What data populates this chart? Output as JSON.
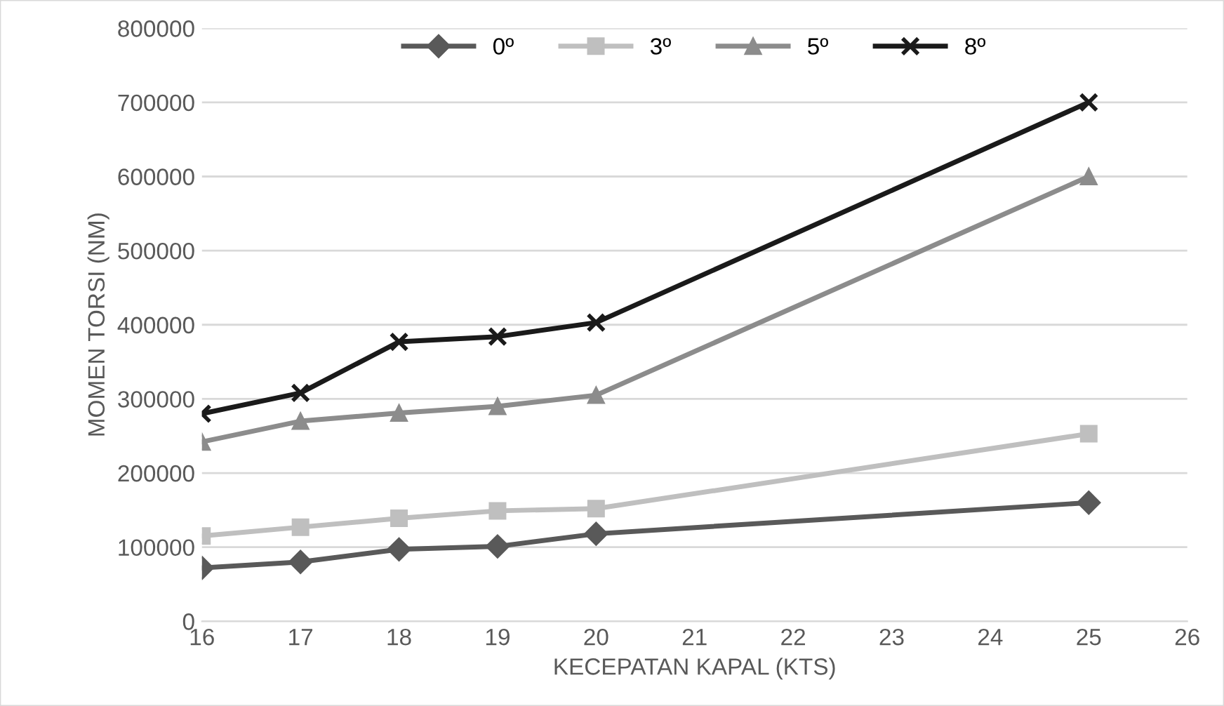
{
  "chart_data": {
    "type": "line",
    "xlabel": "KECEPATAN KAPAL (KTS)",
    "ylabel": "MOMEN TORSI (NM)",
    "x": [
      16,
      17,
      18,
      19,
      20,
      25
    ],
    "series": [
      {
        "name": "0º",
        "color": "#595959",
        "marker": "diamond",
        "values": [
          72000,
          80000,
          97000,
          101000,
          118000,
          160000
        ]
      },
      {
        "name": "3º",
        "color": "#bfbfbf",
        "marker": "square",
        "values": [
          115000,
          127000,
          139000,
          149000,
          152000,
          253000
        ]
      },
      {
        "name": "5º",
        "color": "#8c8c8c",
        "marker": "triangle",
        "values": [
          242000,
          270000,
          281000,
          290000,
          305000,
          600000
        ]
      },
      {
        "name": "8º",
        "color": "#1a1a1a",
        "marker": "cross",
        "values": [
          280000,
          308000,
          377000,
          384000,
          403000,
          700000
        ]
      }
    ],
    "xlim": [
      16,
      26
    ],
    "xticks": [
      16,
      17,
      18,
      19,
      20,
      21,
      22,
      23,
      24,
      25,
      26
    ],
    "ylim": [
      0,
      800000
    ],
    "yticks": [
      0,
      100000,
      200000,
      300000,
      400000,
      500000,
      600000,
      700000,
      800000
    ],
    "grid": "y",
    "legend": "top"
  }
}
